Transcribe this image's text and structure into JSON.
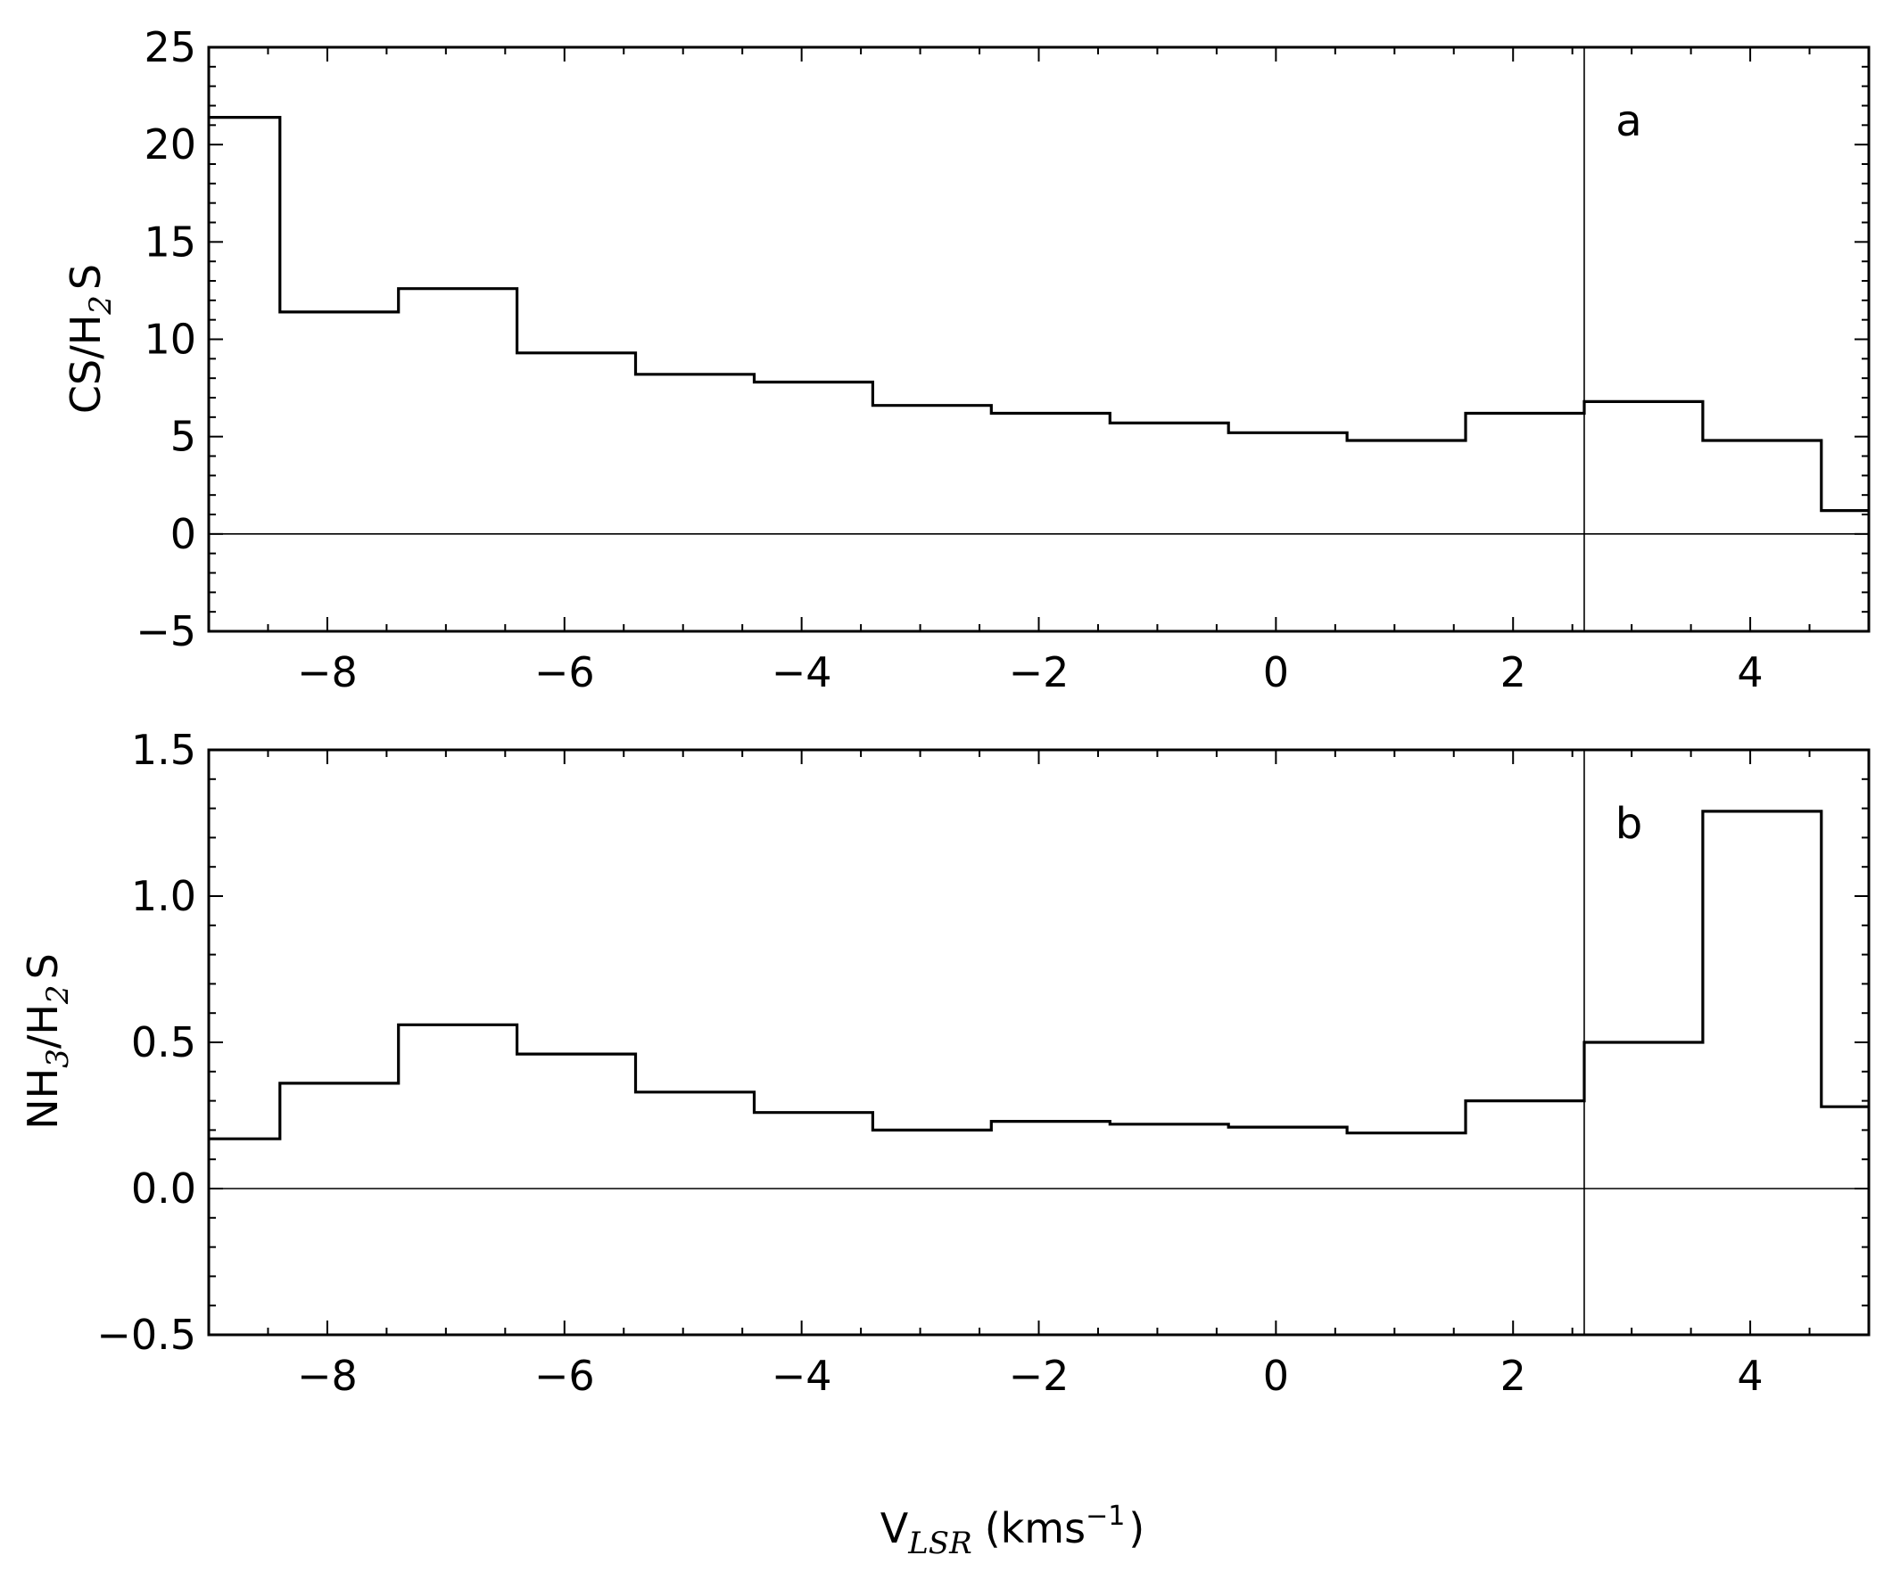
{
  "chart_data": [
    {
      "type": "line",
      "panel_label": "a",
      "ylabel": {
        "main": "CS/H",
        "sub": "2",
        "tail": "S"
      },
      "xlim": [
        -9,
        5
      ],
      "ylim": [
        -5,
        25
      ],
      "xticks": [
        -8,
        -6,
        -4,
        -2,
        0,
        2,
        4
      ],
      "xtick_labels": [
        "−8",
        "−6",
        "−4",
        "−2",
        "0",
        "2",
        "4"
      ],
      "yticks": [
        -5,
        0,
        5,
        10,
        15,
        20,
        25
      ],
      "ytick_labels": [
        "−5",
        "0",
        "5",
        "10",
        "15",
        "20",
        "25"
      ],
      "vline_x": 2.6,
      "hline_y": 0,
      "step_edges": [
        -9.4,
        -8.4,
        -7.4,
        -6.4,
        -5.4,
        -4.4,
        -3.4,
        -2.4,
        -1.4,
        -0.4,
        0.6,
        1.6,
        2.6,
        3.6,
        4.6,
        5.6
      ],
      "values": [
        21.4,
        11.4,
        12.6,
        9.3,
        8.2,
        7.8,
        6.6,
        6.2,
        5.7,
        5.2,
        4.8,
        6.2,
        6.8,
        4.8,
        1.2
      ]
    },
    {
      "type": "line",
      "panel_label": "b",
      "ylabel": {
        "main": "NH",
        "sub1": "3",
        "mid": "/H",
        "sub2": "2",
        "tail": "S"
      },
      "xlim": [
        -9,
        5
      ],
      "ylim": [
        -0.5,
        1.5
      ],
      "xticks": [
        -8,
        -6,
        -4,
        -2,
        0,
        2,
        4
      ],
      "xtick_labels": [
        "−8",
        "−6",
        "−4",
        "−2",
        "0",
        "2",
        "4"
      ],
      "yticks": [
        -0.5,
        0.0,
        0.5,
        1.0,
        1.5
      ],
      "ytick_labels": [
        "−0.5",
        "0.0",
        "0.5",
        "1.0",
        "1.5"
      ],
      "vline_x": 2.6,
      "hline_y": 0,
      "step_edges": [
        -9.4,
        -8.4,
        -7.4,
        -6.4,
        -5.4,
        -4.4,
        -3.4,
        -2.4,
        -1.4,
        -0.4,
        0.6,
        1.6,
        2.6,
        3.6,
        4.6,
        5.6
      ],
      "values": [
        0.17,
        0.36,
        0.56,
        0.46,
        0.33,
        0.26,
        0.2,
        0.23,
        0.22,
        0.21,
        0.19,
        0.3,
        0.5,
        1.29,
        0.28
      ]
    }
  ],
  "xlabel": {
    "main": "V",
    "sub": "LSR",
    "unit": "(kms",
    "sup": "−1",
    "close": ")"
  }
}
